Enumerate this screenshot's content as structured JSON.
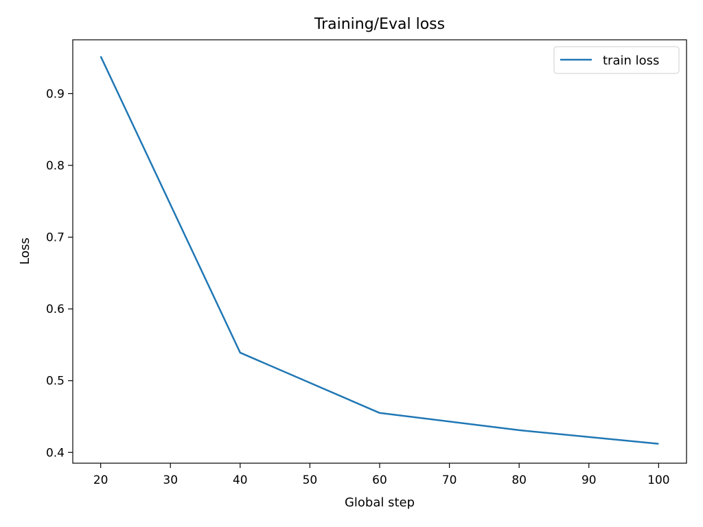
{
  "chart_data": {
    "type": "line",
    "title": "Training/Eval loss",
    "xlabel": "Global step",
    "ylabel": "Loss",
    "xlim": [
      16,
      104
    ],
    "ylim": [
      0.385,
      0.975
    ],
    "xticks": [
      20,
      30,
      40,
      50,
      60,
      70,
      80,
      90,
      100
    ],
    "yticks": [
      0.4,
      0.5,
      0.6,
      0.7,
      0.8,
      0.9
    ],
    "grid": false,
    "legend": "top-right",
    "series": [
      {
        "name": "train loss",
        "color": "#1f77b4",
        "x": [
          20,
          40,
          60,
          80,
          100
        ],
        "y": [
          0.952,
          0.539,
          0.455,
          0.431,
          0.412
        ]
      }
    ]
  }
}
